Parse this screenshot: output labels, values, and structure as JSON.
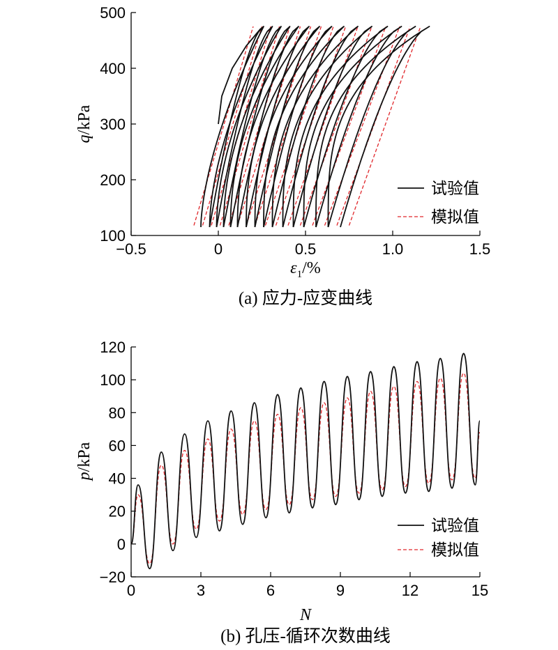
{
  "chart_data": [
    {
      "id": "a",
      "type": "line",
      "caption": "(a) 应力-应变曲线",
      "xlabel": "ε",
      "xlabel_sub": "1",
      "xlabel_suffix": "/%",
      "ylabel_var": "q",
      "ylabel_unit": "/kPa",
      "xlim": [
        -0.5,
        1.5
      ],
      "ylim": [
        100,
        500
      ],
      "xticks": [
        -0.5,
        0,
        0.5,
        1.0,
        1.5
      ],
      "xtick_labels": [
        "−0.5",
        "0",
        "0.5",
        "1.0",
        "1.5"
      ],
      "yticks": [
        100,
        200,
        300,
        400,
        500
      ],
      "ytick_labels": [
        "100",
        "200",
        "300",
        "400",
        "500"
      ],
      "legend": [
        "试验值",
        "模拟值"
      ],
      "legend_position": "bottom-right",
      "colors": {
        "exp": "#111111",
        "sim": "#e0262a"
      },
      "series": [
        {
          "name": "试验值",
          "style": "solid",
          "initial_loading": {
            "x": [
              0.0,
              0.02,
              0.08,
              0.16,
              0.24,
              0.26
            ],
            "y": [
              300,
              350,
              400,
              440,
              470,
              475
            ]
          },
          "cycles": [
            {
              "min_strain": -0.1,
              "max_strain": 0.26
            },
            {
              "min_strain": -0.05,
              "max_strain": 0.31
            },
            {
              "min_strain": -0.01,
              "max_strain": 0.36
            },
            {
              "min_strain": 0.03,
              "max_strain": 0.41
            },
            {
              "min_strain": 0.07,
              "max_strain": 0.46
            },
            {
              "min_strain": 0.11,
              "max_strain": 0.52
            },
            {
              "min_strain": 0.16,
              "max_strain": 0.58
            },
            {
              "min_strain": 0.21,
              "max_strain": 0.65
            },
            {
              "min_strain": 0.26,
              "max_strain": 0.72
            },
            {
              "min_strain": 0.31,
              "max_strain": 0.8
            },
            {
              "min_strain": 0.37,
              "max_strain": 0.88
            },
            {
              "min_strain": 0.43,
              "max_strain": 0.97
            },
            {
              "min_strain": 0.49,
              "max_strain": 1.05
            },
            {
              "min_strain": 0.56,
              "max_strain": 1.13
            },
            {
              "min_strain": 0.63,
              "max_strain": 1.21
            }
          ],
          "q_min": 115,
          "q_max": 475
        },
        {
          "name": "模拟值",
          "style": "dashed",
          "lines": [
            {
              "x0": -0.14,
              "x1": 0.2
            },
            {
              "x0": -0.09,
              "x1": 0.25
            },
            {
              "x0": -0.04,
              "x1": 0.3
            },
            {
              "x0": 0.01,
              "x1": 0.35
            },
            {
              "x0": 0.06,
              "x1": 0.41
            },
            {
              "x0": 0.11,
              "x1": 0.47
            },
            {
              "x0": 0.16,
              "x1": 0.53
            },
            {
              "x0": 0.21,
              "x1": 0.59
            },
            {
              "x0": 0.27,
              "x1": 0.66
            },
            {
              "x0": 0.33,
              "x1": 0.73
            },
            {
              "x0": 0.4,
              "x1": 0.8
            },
            {
              "x0": 0.47,
              "x1": 0.88
            },
            {
              "x0": 0.54,
              "x1": 0.96
            },
            {
              "x0": 0.61,
              "x1": 1.04
            },
            {
              "x0": 0.68,
              "x1": 1.1
            },
            {
              "x0": 0.75,
              "x1": 1.16
            }
          ],
          "q_min": 118,
          "q_max": 475
        }
      ]
    },
    {
      "id": "b",
      "type": "line",
      "caption": "(b) 孔压-循环次数曲线",
      "xlabel": "N",
      "ylabel_var": "p",
      "ylabel_unit": "/kPa",
      "xlim": [
        0,
        15
      ],
      "ylim": [
        -20,
        120
      ],
      "xticks": [
        0,
        3,
        6,
        9,
        12,
        15
      ],
      "xtick_labels": [
        "0",
        "3",
        "6",
        "9",
        "12",
        "15"
      ],
      "yticks": [
        -20,
        0,
        20,
        40,
        60,
        80,
        100,
        120
      ],
      "ytick_labels": [
        "−20",
        "0",
        "20",
        "40",
        "60",
        "80",
        "100",
        "120"
      ],
      "legend": [
        "试验值",
        "模拟值"
      ],
      "legend_position": "bottom-right",
      "series": [
        {
          "name": "试验值",
          "style": "solid",
          "x": [
            0,
            0.3,
            0.8,
            1.3,
            1.8,
            2.3,
            2.8,
            3.3,
            3.8,
            4.3,
            4.8,
            5.3,
            5.8,
            6.3,
            6.8,
            7.3,
            7.8,
            8.3,
            8.8,
            9.3,
            9.8,
            10.3,
            10.8,
            11.3,
            11.8,
            12.3,
            12.8,
            13.3,
            13.8,
            14.3,
            14.8,
            15.0
          ],
          "y": [
            0,
            36,
            -15,
            56,
            -4,
            67,
            4,
            75,
            8,
            81,
            12,
            86,
            16,
            91,
            19,
            95,
            22,
            99,
            24,
            102,
            27,
            105,
            29,
            108,
            31,
            111,
            32,
            113,
            34,
            116,
            36,
            75
          ]
        },
        {
          "name": "模拟值",
          "style": "dashed",
          "x": [
            0,
            0.3,
            0.8,
            1.3,
            1.8,
            2.3,
            2.8,
            3.3,
            3.8,
            4.3,
            4.8,
            5.3,
            5.8,
            6.3,
            6.8,
            7.3,
            7.8,
            8.3,
            8.8,
            9.3,
            9.8,
            10.3,
            10.8,
            11.3,
            11.8,
            12.3,
            12.8,
            13.3,
            13.8,
            14.3,
            14.8,
            15.0
          ],
          "y": [
            0,
            30,
            -12,
            48,
            0,
            57,
            9,
            64,
            14,
            70,
            18,
            75,
            21,
            79,
            24,
            83,
            27,
            86,
            29,
            89,
            31,
            93,
            33,
            96,
            35,
            99,
            37,
            101,
            39,
            104,
            40,
            68
          ]
        }
      ]
    }
  ]
}
